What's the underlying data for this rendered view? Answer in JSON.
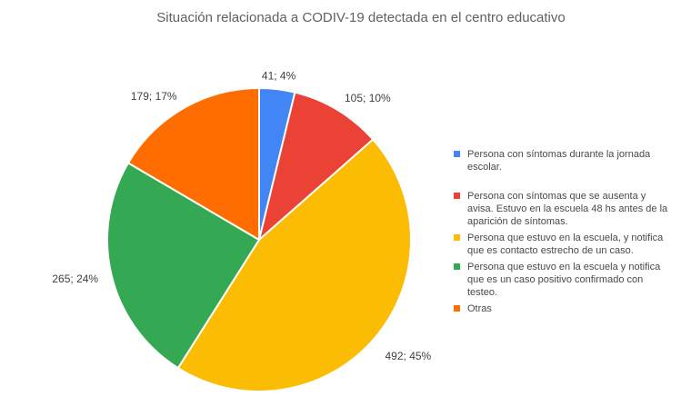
{
  "chart_data": {
    "type": "pie",
    "title": "Situación relacionada a CODIV-19 detectada en el centro educativo",
    "legend_position": "right",
    "start_angle_deg": 0,
    "direction": "clockwise",
    "background_color": "#ffffff",
    "title_color": "#616161",
    "data_label_color": "#404040",
    "legend_text_color": "#494949",
    "slices": [
      {
        "label": "Persona con síntomas durante la jornada escolar.",
        "value": 41,
        "percent": 4,
        "data_label": "41; 4%",
        "color": "#4285F4"
      },
      {
        "label": "Persona con síntomas que se ausenta y avisa. Estuvo en la escuela 48 hs antes de la aparición de síntomas.",
        "value": 105,
        "percent": 10,
        "data_label": "105; 10%",
        "color": "#EA4335"
      },
      {
        "label": "Persona que estuvo en la escuela, y notifica que es contacto estrecho de un caso.",
        "value": 492,
        "percent": 45,
        "data_label": "492; 45%",
        "color": "#FBBC04"
      },
      {
        "label": "Persona que estuvo en la escuela y notifica que es un caso positivo confirmado con testeo.",
        "value": 265,
        "percent": 24,
        "data_label": "265; 24%",
        "color": "#34A853"
      },
      {
        "label": "Otras",
        "value": 179,
        "percent": 17,
        "data_label": "179; 17%",
        "color": "#FF6D01"
      }
    ]
  }
}
